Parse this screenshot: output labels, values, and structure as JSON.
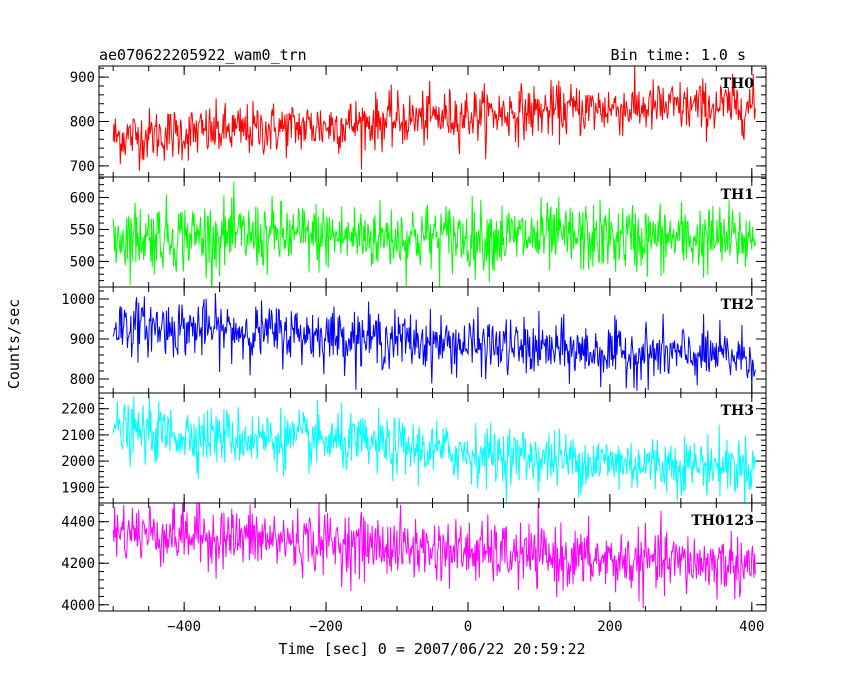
{
  "header": {
    "title": "ae070622205922_wam0_trn",
    "bin_time": "Bin time: 1.0 s"
  },
  "chart_data": {
    "type": "line",
    "title": "ae070622205922_wam0_trn",
    "subtitle": "Bin time: 1.0 s",
    "xlabel": "Time [sec] 0 = 2007/06/22 20:59:22",
    "ylabel": "Counts/sec",
    "xlim": [
      -520,
      420
    ],
    "x_ticks": [
      -400,
      -200,
      0,
      200,
      400
    ],
    "x_range": [
      -500,
      405
    ],
    "bin_time": 1.0,
    "series": [
      {
        "name": "TH0",
        "color": "#ff0000",
        "ylim": [
          675,
          925
        ],
        "y_ticks": [
          700,
          800,
          900
        ],
        "trend": [
          {
            "x": -500,
            "y": 765
          },
          {
            "x": -200,
            "y": 790
          },
          {
            "x": 0,
            "y": 815
          },
          {
            "x": 200,
            "y": 830
          },
          {
            "x": 400,
            "y": 835
          }
        ],
        "noise": 30
      },
      {
        "name": "TH1",
        "color": "#00ff00",
        "ylim": [
          460,
          632
        ],
        "y_ticks": [
          500,
          550,
          600
        ],
        "trend": [
          {
            "x": -500,
            "y": 540
          },
          {
            "x": 0,
            "y": 538
          },
          {
            "x": 400,
            "y": 535
          }
        ],
        "noise": 27
      },
      {
        "name": "TH2",
        "color": "#0000ff",
        "ylim": [
          765,
          1030
        ],
        "y_ticks": [
          800,
          900,
          1000
        ],
        "trend": [
          {
            "x": -500,
            "y": 935
          },
          {
            "x": -200,
            "y": 910
          },
          {
            "x": 0,
            "y": 885
          },
          {
            "x": 200,
            "y": 865
          },
          {
            "x": 400,
            "y": 855
          }
        ],
        "noise": 35
      },
      {
        "name": "TH3",
        "color": "#00ffff",
        "ylim": [
          1840,
          2260
        ],
        "y_ticks": [
          1900,
          2000,
          2100,
          2200
        ],
        "trend": [
          {
            "x": -500,
            "y": 2115
          },
          {
            "x": -200,
            "y": 2075
          },
          {
            "x": 0,
            "y": 2030
          },
          {
            "x": 200,
            "y": 1995
          },
          {
            "x": 400,
            "y": 1980
          }
        ],
        "noise": 55
      },
      {
        "name": "TH0123",
        "color": "#ff00ff",
        "ylim": [
          3970,
          4490
        ],
        "y_ticks": [
          4000,
          4200,
          4400
        ],
        "trend": [
          {
            "x": -500,
            "y": 4355
          },
          {
            "x": -200,
            "y": 4300
          },
          {
            "x": 0,
            "y": 4255
          },
          {
            "x": 200,
            "y": 4210
          },
          {
            "x": 400,
            "y": 4195
          }
        ],
        "noise": 75
      }
    ]
  }
}
